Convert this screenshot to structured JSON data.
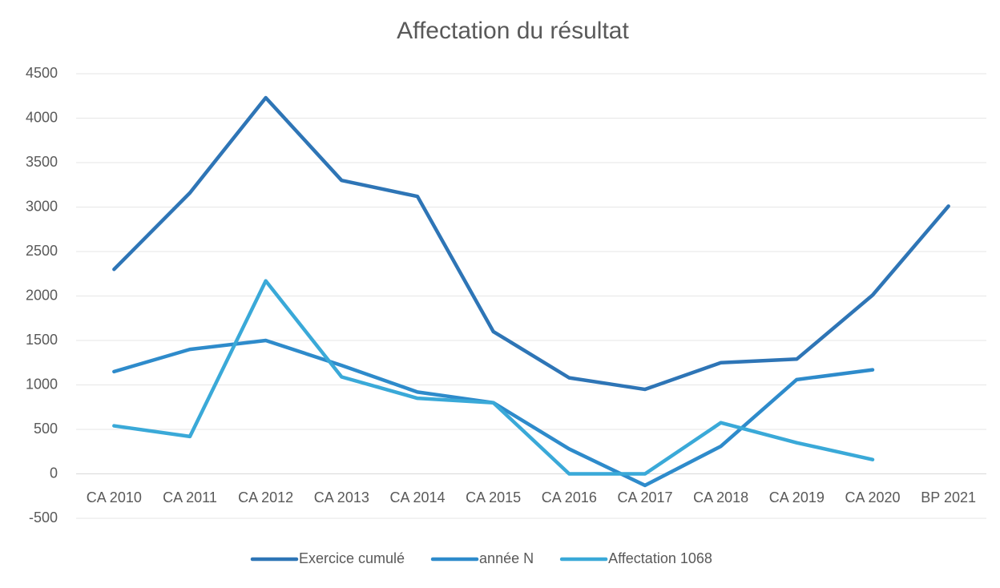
{
  "chart_data": {
    "type": "line",
    "title": "Affectation du résultat",
    "categories": [
      "CA 2010",
      "CA 2011",
      "CA 2012",
      "CA 2013",
      "CA 2014",
      "CA 2015",
      "CA 2016",
      "CA 2017",
      "CA 2018",
      "CA 2019",
      "CA 2020",
      "BP 2021"
    ],
    "series": [
      {
        "name": "Exercice cumulé",
        "color": "#2e75b6",
        "values": [
          2300,
          3160,
          4230,
          3300,
          3120,
          1600,
          1080,
          950,
          1250,
          1290,
          2010,
          3010
        ]
      },
      {
        "name": "année N",
        "color": "#2e8bcb",
        "values": [
          1150,
          1400,
          1500,
          1220,
          920,
          800,
          280,
          -130,
          310,
          1060,
          1170,
          null
        ]
      },
      {
        "name": "Affectation 1068",
        "color": "#3aa9d8",
        "values": [
          540,
          420,
          2170,
          1090,
          850,
          800,
          0,
          0,
          575,
          350,
          160,
          null
        ]
      }
    ],
    "ylim": [
      -500,
      4500
    ],
    "yticks": [
      -500,
      0,
      500,
      1000,
      1500,
      2000,
      2500,
      3000,
      3500,
      4000,
      4500
    ],
    "grid": true,
    "legend": "bottom"
  }
}
